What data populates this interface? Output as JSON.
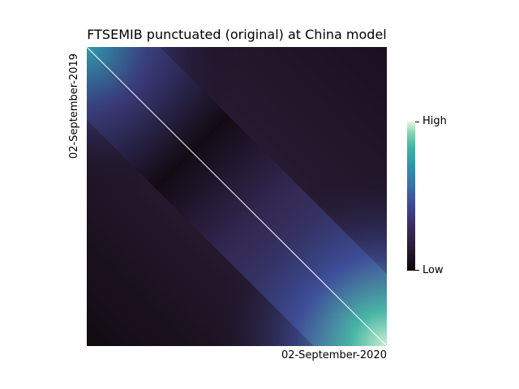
{
  "chart_data": {
    "type": "heatmap",
    "title": "FTSEMIB punctuated (original) at China model",
    "ylabel": "02-September-2019",
    "xlabel": "02-September-2020",
    "colorbar": {
      "high_label": "High",
      "low_label": "Low",
      "colormap": "mako"
    },
    "matrix": "symmetric similarity, high along diagonal, strongest near end of period",
    "diagonal": "brightest"
  }
}
